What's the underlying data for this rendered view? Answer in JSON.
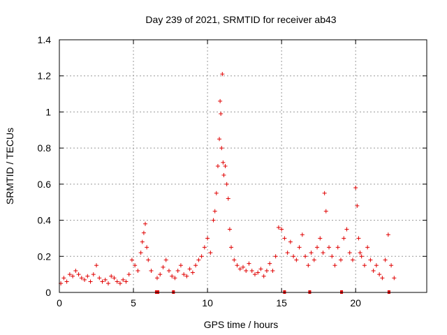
{
  "chart_data": {
    "type": "scatter",
    "title": "Day 239 of 2021, SRMTID for receiver ab43",
    "xlabel": "GPS time / hours",
    "ylabel": "SRMTID / TECUs",
    "xlim": [
      0,
      24.8
    ],
    "ylim": [
      0,
      1.4
    ],
    "xticks": [
      0,
      5,
      10,
      15,
      20
    ],
    "xtick_labels": [
      "0",
      "5",
      "10",
      "15",
      "20"
    ],
    "yticks": [
      0,
      0.2,
      0.4,
      0.6,
      0.8,
      1.0,
      1.2,
      1.4
    ],
    "ytick_labels": [
      "0",
      "0.2",
      "0.4",
      "0.6",
      "0.8",
      "1",
      "1.2",
      "1.4"
    ],
    "grid": true,
    "marker": "plus",
    "color": "#e00000",
    "series": [
      {
        "name": "SRMTID",
        "x": [
          0.1,
          0.3,
          0.5,
          0.7,
          0.9,
          1.1,
          1.3,
          1.5,
          1.7,
          1.9,
          2.1,
          2.3,
          2.5,
          2.7,
          2.9,
          3.1,
          3.3,
          3.5,
          3.7,
          3.9,
          4.1,
          4.3,
          4.5,
          4.7,
          4.9,
          5.1,
          5.3,
          5.5,
          5.6,
          5.7,
          5.8,
          5.9,
          6.0,
          6.2,
          6.6,
          6.8,
          7.0,
          7.2,
          7.4,
          7.6,
          7.8,
          8.0,
          8.2,
          8.4,
          8.6,
          8.8,
          9.0,
          9.2,
          9.4,
          9.6,
          9.8,
          10.0,
          10.2,
          10.4,
          10.5,
          10.6,
          10.7,
          10.8,
          10.85,
          10.9,
          10.95,
          11.0,
          11.05,
          11.1,
          11.2,
          11.3,
          11.4,
          11.5,
          11.6,
          11.8,
          12.0,
          12.2,
          12.4,
          12.6,
          12.8,
          13.0,
          13.2,
          13.4,
          13.6,
          13.8,
          14.0,
          14.2,
          14.4,
          14.6,
          14.8,
          15.0,
          15.2,
          15.4,
          15.6,
          15.8,
          16.0,
          16.2,
          16.4,
          16.6,
          16.8,
          17.0,
          17.2,
          17.4,
          17.6,
          17.8,
          17.9,
          18.0,
          18.2,
          18.4,
          18.6,
          18.8,
          19.0,
          19.2,
          19.4,
          19.6,
          19.8,
          20.0,
          20.1,
          20.2,
          20.3,
          20.4,
          20.6,
          20.8,
          21.0,
          21.2,
          21.4,
          21.6,
          21.8,
          22.0,
          22.2,
          22.4,
          22.6
        ],
        "y": [
          0.05,
          0.08,
          0.06,
          0.1,
          0.09,
          0.12,
          0.1,
          0.08,
          0.07,
          0.09,
          0.06,
          0.1,
          0.15,
          0.08,
          0.06,
          0.07,
          0.05,
          0.09,
          0.08,
          0.06,
          0.05,
          0.07,
          0.06,
          0.1,
          0.18,
          0.15,
          0.12,
          0.22,
          0.28,
          0.33,
          0.38,
          0.25,
          0.18,
          0.12,
          0.08,
          0.1,
          0.14,
          0.18,
          0.12,
          0.09,
          0.08,
          0.12,
          0.15,
          0.1,
          0.09,
          0.13,
          0.11,
          0.15,
          0.18,
          0.2,
          0.25,
          0.3,
          0.22,
          0.4,
          0.45,
          0.55,
          0.7,
          0.85,
          1.06,
          0.99,
          0.8,
          1.21,
          0.72,
          0.65,
          0.7,
          0.6,
          0.52,
          0.35,
          0.25,
          0.18,
          0.15,
          0.13,
          0.14,
          0.12,
          0.16,
          0.12,
          0.1,
          0.11,
          0.13,
          0.09,
          0.12,
          0.16,
          0.12,
          0.2,
          0.36,
          0.35,
          0.3,
          0.22,
          0.28,
          0.2,
          0.18,
          0.25,
          0.32,
          0.2,
          0.15,
          0.22,
          0.18,
          0.25,
          0.3,
          0.22,
          0.55,
          0.45,
          0.25,
          0.2,
          0.15,
          0.25,
          0.18,
          0.3,
          0.35,
          0.22,
          0.18,
          0.58,
          0.48,
          0.3,
          0.22,
          0.2,
          0.15,
          0.25,
          0.18,
          0.12,
          0.15,
          0.1,
          0.08,
          0.18,
          0.32,
          0.15,
          0.08
        ]
      }
    ],
    "data_gaps_x": [
      6.55,
      6.65,
      7.7,
      15.2,
      16.9,
      19.05,
      22.25
    ]
  }
}
